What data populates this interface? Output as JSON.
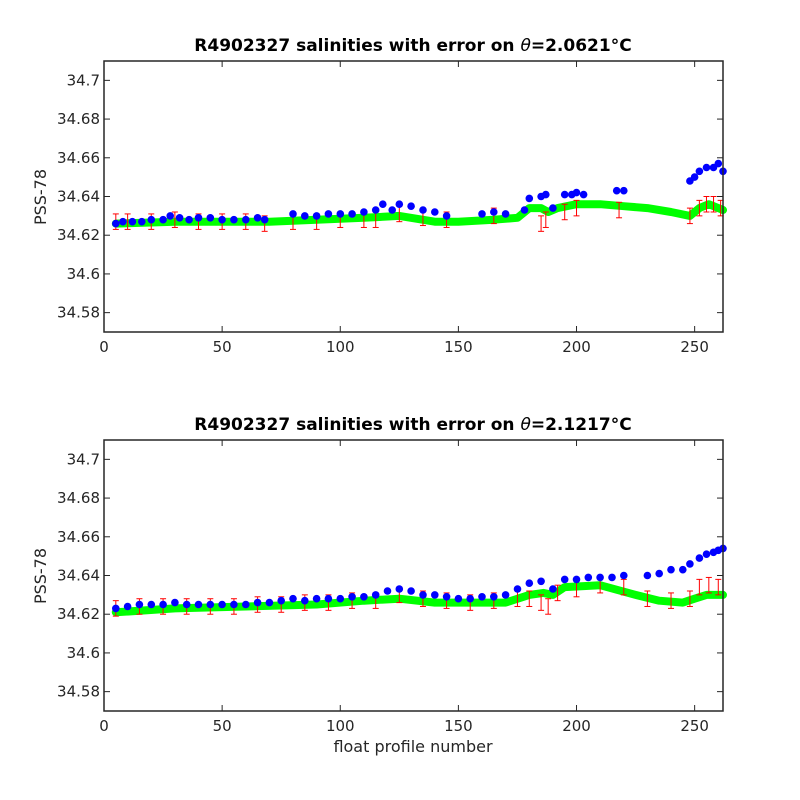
{
  "chart_data": [
    {
      "type": "scatter",
      "title_prefix": "R4902327 salinities with error on ",
      "title_theta": "θ",
      "title_value": "=2.0621",
      "title_unit": "°C",
      "xlabel": "",
      "ylabel": "PSS-78",
      "xlim": [
        0,
        262
      ],
      "ylim": [
        34.57,
        34.71
      ],
      "xticks": [
        "0",
        "50",
        "100",
        "150",
        "200",
        "250"
      ],
      "yticks": [
        "34.58",
        "34.6",
        "34.62",
        "34.64",
        "34.66",
        "34.68",
        "34.7"
      ],
      "colors": {
        "measured": "#0000ff",
        "mapped": "#00ff00",
        "error": "#ff0000"
      },
      "series": [
        {
          "role": "mapped",
          "x": [
            5,
            30,
            60,
            70,
            90,
            110,
            125,
            140,
            150,
            165,
            175,
            180,
            185,
            188,
            192,
            200,
            210,
            220,
            230,
            240,
            248,
            252,
            256,
            260,
            262
          ],
          "values": [
            34.626,
            34.627,
            34.627,
            34.627,
            34.628,
            34.629,
            34.63,
            34.627,
            34.627,
            34.628,
            34.629,
            34.634,
            34.634,
            34.632,
            34.634,
            34.636,
            34.636,
            34.635,
            34.634,
            34.632,
            34.63,
            34.634,
            34.636,
            34.634,
            34.633
          ]
        },
        {
          "role": "error",
          "x": [
            5,
            10,
            20,
            30,
            40,
            50,
            60,
            68,
            80,
            90,
            100,
            110,
            115,
            125,
            135,
            145,
            165,
            185,
            187,
            195,
            200,
            218,
            248,
            252,
            255,
            258,
            261
          ],
          "values": [
            34.627,
            34.627,
            34.627,
            34.628,
            34.627,
            34.627,
            34.627,
            34.626,
            34.627,
            34.627,
            34.628,
            34.628,
            34.628,
            34.631,
            34.629,
            34.628,
            34.63,
            34.626,
            34.628,
            34.632,
            34.634,
            34.633,
            34.63,
            34.634,
            34.636,
            34.636,
            34.634
          ],
          "err": 0.004
        },
        {
          "role": "measured",
          "x": [
            5,
            8,
            12,
            16,
            20,
            25,
            28,
            32,
            36,
            40,
            45,
            50,
            55,
            60,
            65,
            68,
            80,
            85,
            90,
            95,
            100,
            105,
            110,
            115,
            118,
            122,
            125,
            130,
            135,
            140,
            145,
            160,
            165,
            170,
            178,
            180,
            185,
            187,
            190,
            195,
            198,
            200,
            203,
            217,
            220,
            248,
            250,
            252,
            255,
            258,
            260,
            262
          ],
          "values": [
            34.626,
            34.627,
            34.627,
            34.627,
            34.628,
            34.628,
            34.63,
            34.629,
            34.628,
            34.629,
            34.629,
            34.628,
            34.628,
            34.628,
            34.629,
            34.628,
            34.631,
            34.63,
            34.63,
            34.631,
            34.631,
            34.631,
            34.632,
            34.633,
            34.636,
            34.633,
            34.636,
            34.635,
            34.633,
            34.632,
            34.63,
            34.631,
            34.632,
            34.631,
            34.633,
            34.639,
            34.64,
            34.641,
            34.634,
            34.641,
            34.641,
            34.642,
            34.641,
            34.643,
            34.643,
            34.648,
            34.65,
            34.653,
            34.655,
            34.655,
            34.657,
            34.653
          ]
        }
      ]
    },
    {
      "type": "scatter",
      "title_prefix": "R4902327 salinities with error on ",
      "title_theta": "θ",
      "title_value": "=2.1217",
      "title_unit": "°C",
      "xlabel": "float profile number",
      "ylabel": "PSS-78",
      "xlim": [
        0,
        262
      ],
      "ylim": [
        34.57,
        34.71
      ],
      "xticks": [
        "0",
        "50",
        "100",
        "150",
        "200",
        "250"
      ],
      "yticks": [
        "34.58",
        "34.6",
        "34.62",
        "34.64",
        "34.66",
        "34.68",
        "34.7"
      ],
      "colors": {
        "measured": "#0000ff",
        "mapped": "#00ff00",
        "error": "#ff0000"
      },
      "series": [
        {
          "role": "mapped",
          "x": [
            5,
            30,
            60,
            90,
            110,
            125,
            140,
            155,
            170,
            180,
            186,
            190,
            195,
            210,
            225,
            235,
            245,
            250,
            255,
            262
          ],
          "values": [
            34.621,
            34.623,
            34.624,
            34.625,
            34.627,
            34.628,
            34.626,
            34.626,
            34.626,
            34.63,
            34.631,
            34.63,
            34.634,
            34.635,
            34.63,
            34.627,
            34.626,
            34.628,
            34.63,
            34.63
          ]
        },
        {
          "role": "error",
          "x": [
            5,
            15,
            25,
            35,
            45,
            55,
            65,
            75,
            85,
            95,
            105,
            115,
            125,
            135,
            145,
            155,
            165,
            175,
            180,
            185,
            188,
            192,
            200,
            210,
            220,
            230,
            240,
            248,
            252,
            256,
            260
          ],
          "values": [
            34.623,
            34.624,
            34.624,
            34.624,
            34.624,
            34.624,
            34.625,
            34.625,
            34.626,
            34.626,
            34.627,
            34.627,
            34.63,
            34.628,
            34.627,
            34.626,
            34.627,
            34.628,
            34.628,
            34.626,
            34.624,
            34.631,
            34.633,
            34.635,
            34.634,
            34.628,
            34.627,
            34.628,
            34.634,
            34.635,
            34.634
          ],
          "err": 0.004
        },
        {
          "role": "measured",
          "x": [
            5,
            10,
            15,
            20,
            25,
            30,
            35,
            40,
            45,
            50,
            55,
            60,
            65,
            70,
            75,
            80,
            85,
            90,
            95,
            100,
            105,
            110,
            115,
            120,
            125,
            130,
            135,
            140,
            145,
            150,
            155,
            160,
            165,
            170,
            175,
            180,
            185,
            190,
            195,
            200,
            205,
            210,
            215,
            220,
            230,
            235,
            240,
            245,
            248,
            252,
            255,
            258,
            260,
            262
          ],
          "values": [
            34.623,
            34.624,
            34.625,
            34.625,
            34.625,
            34.626,
            34.625,
            34.625,
            34.625,
            34.625,
            34.625,
            34.625,
            34.626,
            34.626,
            34.627,
            34.628,
            34.627,
            34.628,
            34.628,
            34.628,
            34.629,
            34.629,
            34.63,
            34.632,
            34.633,
            34.632,
            34.63,
            34.63,
            34.629,
            34.628,
            34.628,
            34.629,
            34.629,
            34.63,
            34.633,
            34.636,
            34.637,
            34.633,
            34.638,
            34.638,
            34.639,
            34.639,
            34.639,
            34.64,
            34.64,
            34.641,
            34.643,
            34.643,
            34.646,
            34.649,
            34.651,
            34.652,
            34.653,
            34.654
          ]
        }
      ]
    }
  ]
}
